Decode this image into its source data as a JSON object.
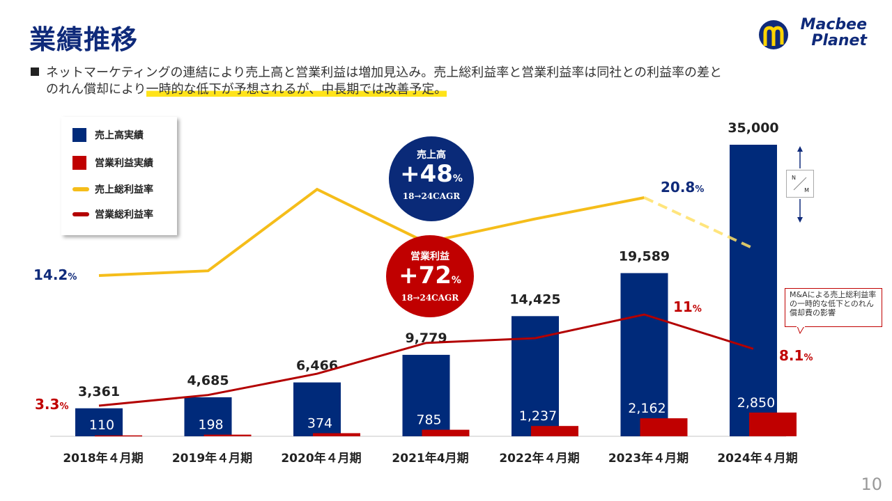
{
  "header": {
    "title": "業績推移",
    "logo_line1": "Macbee",
    "logo_line2": "Planet"
  },
  "bullet": {
    "line1": "ネットマーケティングの連結により売上高と営業利益は増加見込み。売上総利益率と営業利益率は同社との利益率の差と",
    "line2_plain": "のれん償却により",
    "line2_highlight": "一時的な低下が予想されるが、中長期では改善予定。"
  },
  "legend": {
    "items": [
      {
        "label": "売上高実績",
        "type": "bar",
        "color": "#002a7a"
      },
      {
        "label": "営業利益実績",
        "type": "bar",
        "color": "#c00000"
      },
      {
        "label": "売上総利益率",
        "type": "line",
        "color": "#f5bd1a"
      },
      {
        "label": "営業総利益率",
        "type": "line",
        "color": "#b30000"
      }
    ]
  },
  "badges": {
    "sales": {
      "label": "売上高",
      "value": "+48",
      "unit": "%",
      "sub": "18→24CAGR",
      "color": "#0a2a78"
    },
    "op": {
      "label": "営業利益",
      "value": "+72",
      "unit": "%",
      "sub": "18→24CAGR",
      "color": "#c00000"
    }
  },
  "annotations": {
    "nm_top": "N",
    "nm_bottom": "M",
    "callout": "M&Aによる売上総利益率の一時的な低下とのれん償却費の影響"
  },
  "page_number": "10",
  "chart_data": {
    "type": "bar",
    "categories": [
      "2018年４月期",
      "2019年４月期",
      "2020年４月期",
      "2021年4月期",
      "2022年４月期",
      "2023年４月期",
      "2024年４月期"
    ],
    "series": [
      {
        "name": "売上高実績",
        "kind": "bar",
        "color": "#002a7a",
        "values": [
          3361,
          4685,
          6466,
          9779,
          14425,
          19589,
          35000
        ],
        "labels": [
          "3,361",
          "4,685",
          "6,466",
          "9,779",
          "14,425",
          "19,589",
          "35,000"
        ]
      },
      {
        "name": "営業利益実績",
        "kind": "bar",
        "color": "#c00000",
        "values": [
          110,
          198,
          374,
          785,
          1237,
          2162,
          2850
        ],
        "labels": [
          "110",
          "198",
          "374",
          "785",
          "1,237",
          "2,162",
          "2,850"
        ]
      },
      {
        "name": "売上総利益率",
        "kind": "line",
        "color": "#f5bd1a",
        "values": [
          14.2,
          14.6,
          21.5,
          17.0,
          19.0,
          20.8,
          16.5
        ],
        "forecast_from_index": 5,
        "labels": [
          {
            "index": 0,
            "text": "14.2",
            "unit": "%"
          },
          {
            "index": 5,
            "text": "20.8",
            "unit": "%"
          }
        ]
      },
      {
        "name": "営業総利益率",
        "kind": "line",
        "color": "#b30000",
        "values": [
          3.3,
          4.2,
          6.0,
          8.6,
          9.0,
          11.0,
          8.1
        ],
        "labels": [
          {
            "index": 0,
            "text": "3.3",
            "unit": "%"
          },
          {
            "index": 5,
            "text": "11",
            "unit": "%"
          },
          {
            "index": 6,
            "text": "8.1",
            "unit": "%"
          }
        ]
      }
    ],
    "ylim_bars": [
      0,
      35000
    ],
    "title": "",
    "xlabel": "",
    "ylabel": "",
    "grid": false,
    "legend_position": "top-left"
  }
}
